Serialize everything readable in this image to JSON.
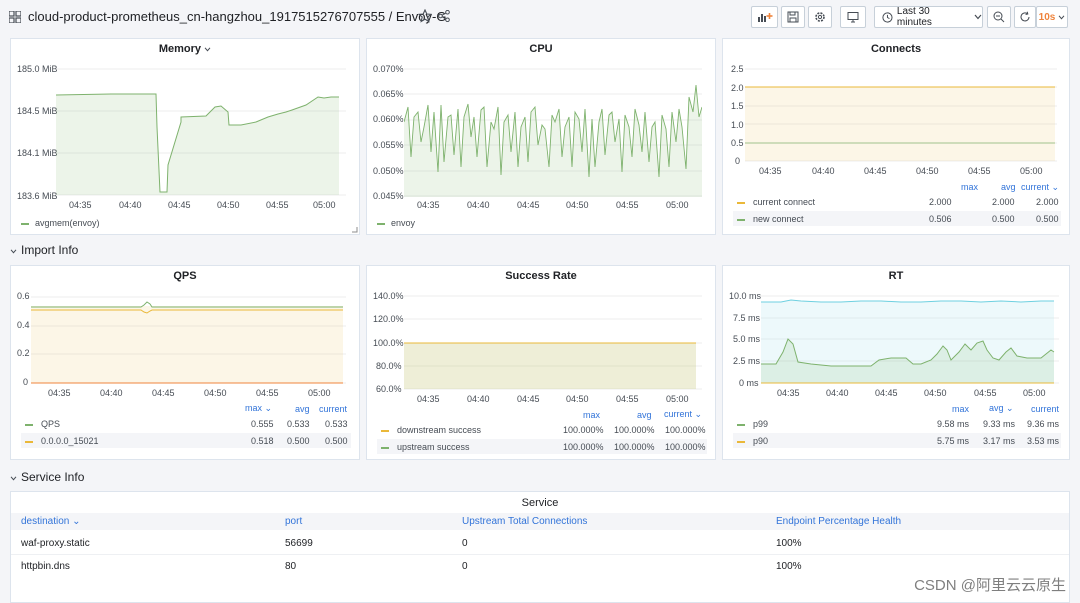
{
  "header": {
    "title": "cloud-product-prometheus_cn-hangzhou_1917515276707555 / Envoy-G",
    "time_range": "Last 30 minutes",
    "refresh": "10s"
  },
  "xticks": [
    "04:35",
    "04:40",
    "04:45",
    "04:50",
    "04:55",
    "05:00"
  ],
  "memory": {
    "title": "Memory",
    "yticks": [
      "185.0 MiB",
      "184.5 MiB",
      "184.1 MiB",
      "183.6 MiB"
    ],
    "legend": "avgmem(envoy)"
  },
  "cpu": {
    "title": "CPU",
    "yticks": [
      "0.070%",
      "0.065%",
      "0.060%",
      "0.055%",
      "0.050%",
      "0.045%"
    ],
    "legend": "envoy"
  },
  "connects": {
    "title": "Connects",
    "yticks": [
      "2.5",
      "2.0",
      "1.5",
      "1.0",
      "0.5",
      "0"
    ],
    "headers": [
      "max",
      "avg",
      "current"
    ],
    "rows": [
      {
        "name": "current connect",
        "max": "2.000",
        "avg": "2.000",
        "current": "2.000"
      },
      {
        "name": "new connect",
        "max": "0.506",
        "avg": "0.500",
        "current": "0.500"
      }
    ]
  },
  "rows": {
    "import": "Import Info",
    "service": "Service Info"
  },
  "qps": {
    "title": "QPS",
    "yticks": [
      "0.6",
      "0.4",
      "0.2",
      "0"
    ],
    "headers": [
      "max",
      "avg",
      "current"
    ],
    "rows": [
      {
        "name": "QPS",
        "max": "0.555",
        "avg": "0.533",
        "current": "0.533"
      },
      {
        "name": "0.0.0.0_15021",
        "max": "0.518",
        "avg": "0.500",
        "current": "0.500"
      }
    ]
  },
  "success": {
    "title": "Success Rate",
    "yticks": [
      "140.0%",
      "120.0%",
      "100.0%",
      "80.0%",
      "60.0%"
    ],
    "headers": [
      "max",
      "avg",
      "current"
    ],
    "rows": [
      {
        "name": "downstream success",
        "max": "100.000%",
        "avg": "100.000%",
        "current": "100.000%"
      },
      {
        "name": "upstream success",
        "max": "100.000%",
        "avg": "100.000%",
        "current": "100.000%"
      }
    ]
  },
  "rt": {
    "title": "RT",
    "yticks": [
      "10.0 ms",
      "7.5 ms",
      "5.0 ms",
      "2.5 ms",
      "0 ms"
    ],
    "headers": [
      "max",
      "avg",
      "current"
    ],
    "rows": [
      {
        "name": "p99",
        "max": "9.58 ms",
        "avg": "9.33 ms",
        "current": "9.36 ms"
      },
      {
        "name": "p90",
        "max": "5.75 ms",
        "avg": "3.17 ms",
        "current": "3.53 ms"
      }
    ]
  },
  "service": {
    "title": "Service",
    "columns": [
      "destination",
      "port",
      "Upstream Total Connections",
      "Endpoint Percentage Health"
    ],
    "rows": [
      [
        "waf-proxy.static",
        "56699",
        "0",
        "100%"
      ],
      [
        "httpbin.dns",
        "80",
        "0",
        "100%"
      ]
    ]
  },
  "watermark": "CSDN @阿里云云原生",
  "colors": {
    "green": "#7eb26d",
    "yellow": "#eab839",
    "blue": "#6ed0e0",
    "orange": "#ef843c",
    "link": "#3274d9"
  }
}
